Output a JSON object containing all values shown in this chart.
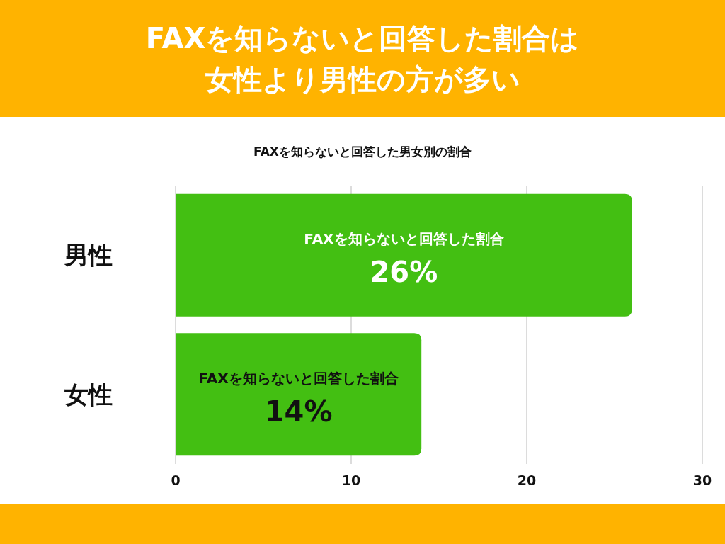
{
  "chart_data": {
    "type": "bar",
    "orientation": "horizontal",
    "title": "FAXを知らないと回答した割合は女性より男性の方が多い",
    "subtitle": "FAXを知らないと回答した男女別の割合",
    "categories": [
      "男性",
      "女性"
    ],
    "values": [
      26,
      14
    ],
    "value_labels": [
      "26%",
      "14%"
    ],
    "color": "#43bf12",
    "xlim": [
      0,
      30
    ],
    "xticks": [
      0,
      10,
      20,
      30
    ],
    "grid": "x",
    "annotations": [
      "FAXを知らないと回答した割合",
      "FAXを知らないと回答した割合"
    ]
  }
}
